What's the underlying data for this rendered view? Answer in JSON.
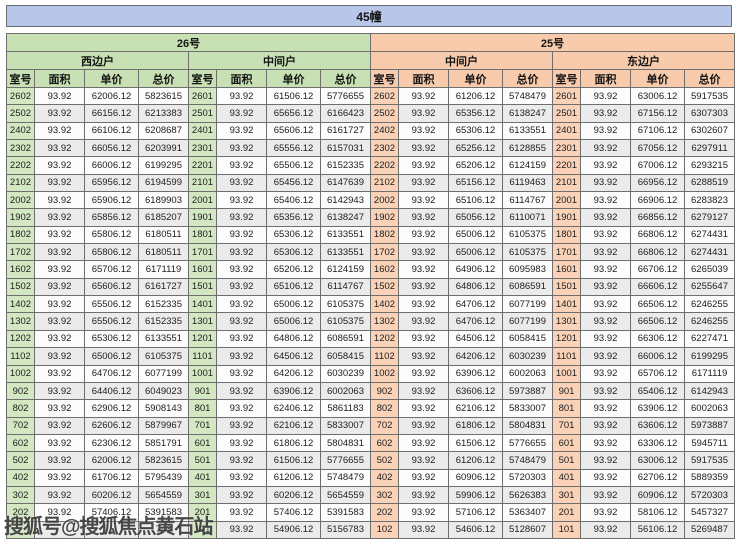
{
  "title": "45幢",
  "sections": [
    {
      "label": "26号"
    },
    {
      "label": "25号"
    }
  ],
  "units": [
    "西边户",
    "中间户",
    "中间户",
    "东边户"
  ],
  "columns": [
    "室号",
    "面积",
    "单价",
    "总价"
  ],
  "colors": {
    "title_bar": "#b8c6e9",
    "section_26": "#c7e1b4",
    "section_25": "#f8cbad",
    "room_cell_26": "#d3e8c2",
    "room_cell_25": "#f9d2b7",
    "stripe_light": "#fcfcfc",
    "stripe_dark": "#ebebeb",
    "border": "#6e6e6e"
  },
  "rows": [
    [
      "2602",
      "93.92",
      "62006.12",
      "5823615",
      "2601",
      "93.92",
      "61506.12",
      "5776655",
      "2602",
      "93.92",
      "61206.12",
      "5748479",
      "2601",
      "93.92",
      "63006.12",
      "5917535"
    ],
    [
      "2502",
      "93.92",
      "66156.12",
      "6213383",
      "2501",
      "93.92",
      "65656.12",
      "6166423",
      "2502",
      "93.92",
      "65356.12",
      "6138247",
      "2501",
      "93.92",
      "67156.12",
      "6307303"
    ],
    [
      "2402",
      "93.92",
      "66106.12",
      "6208687",
      "2401",
      "93.92",
      "65606.12",
      "6161727",
      "2402",
      "93.92",
      "65306.12",
      "6133551",
      "2401",
      "93.92",
      "67106.12",
      "6302607"
    ],
    [
      "2302",
      "93.92",
      "66056.12",
      "6203991",
      "2301",
      "93.92",
      "65556.12",
      "6157031",
      "2302",
      "93.92",
      "65256.12",
      "6128855",
      "2301",
      "93.92",
      "67056.12",
      "6297911"
    ],
    [
      "2202",
      "93.92",
      "66006.12",
      "6199295",
      "2201",
      "93.92",
      "65506.12",
      "6152335",
      "2202",
      "93.92",
      "65206.12",
      "6124159",
      "2201",
      "93.92",
      "67006.12",
      "6293215"
    ],
    [
      "2102",
      "93.92",
      "65956.12",
      "6194599",
      "2101",
      "93.92",
      "65456.12",
      "6147639",
      "2102",
      "93.92",
      "65156.12",
      "6119463",
      "2101",
      "93.92",
      "66956.12",
      "6288519"
    ],
    [
      "2002",
      "93.92",
      "65906.12",
      "6189903",
      "2001",
      "93.92",
      "65406.12",
      "6142943",
      "2002",
      "93.92",
      "65106.12",
      "6114767",
      "2001",
      "93.92",
      "66906.12",
      "6283823"
    ],
    [
      "1902",
      "93.92",
      "65856.12",
      "6185207",
      "1901",
      "93.92",
      "65356.12",
      "6138247",
      "1902",
      "93.92",
      "65056.12",
      "6110071",
      "1901",
      "93.92",
      "66856.12",
      "6279127"
    ],
    [
      "1802",
      "93.92",
      "65806.12",
      "6180511",
      "1801",
      "93.92",
      "65306.12",
      "6133551",
      "1802",
      "93.92",
      "65006.12",
      "6105375",
      "1801",
      "93.92",
      "66806.12",
      "6274431"
    ],
    [
      "1702",
      "93.92",
      "65806.12",
      "6180511",
      "1701",
      "93.92",
      "65306.12",
      "6133551",
      "1702",
      "93.92",
      "65006.12",
      "6105375",
      "1701",
      "93.92",
      "66806.12",
      "6274431"
    ],
    [
      "1602",
      "93.92",
      "65706.12",
      "6171119",
      "1601",
      "93.92",
      "65206.12",
      "6124159",
      "1602",
      "93.92",
      "64906.12",
      "6095983",
      "1601",
      "93.92",
      "66706.12",
      "6265039"
    ],
    [
      "1502",
      "93.92",
      "65606.12",
      "6161727",
      "1501",
      "93.92",
      "65106.12",
      "6114767",
      "1502",
      "93.92",
      "64806.12",
      "6086591",
      "1501",
      "93.92",
      "66606.12",
      "6255647"
    ],
    [
      "1402",
      "93.92",
      "65506.12",
      "6152335",
      "1401",
      "93.92",
      "65006.12",
      "6105375",
      "1402",
      "93.92",
      "64706.12",
      "6077199",
      "1401",
      "93.92",
      "66506.12",
      "6246255"
    ],
    [
      "1302",
      "93.92",
      "65506.12",
      "6152335",
      "1301",
      "93.92",
      "65006.12",
      "6105375",
      "1302",
      "93.92",
      "64706.12",
      "6077199",
      "1301",
      "93.92",
      "66506.12",
      "6246255"
    ],
    [
      "1202",
      "93.92",
      "65306.12",
      "6133551",
      "1201",
      "93.92",
      "64806.12",
      "6086591",
      "1202",
      "93.92",
      "64506.12",
      "6058415",
      "1201",
      "93.92",
      "66306.12",
      "6227471"
    ],
    [
      "1102",
      "93.92",
      "65006.12",
      "6105375",
      "1101",
      "93.92",
      "64506.12",
      "6058415",
      "1102",
      "93.92",
      "64206.12",
      "6030239",
      "1101",
      "93.92",
      "66006.12",
      "6199295"
    ],
    [
      "1002",
      "93.92",
      "64706.12",
      "6077199",
      "1001",
      "93.92",
      "64206.12",
      "6030239",
      "1002",
      "93.92",
      "63906.12",
      "6002063",
      "1001",
      "93.92",
      "65706.12",
      "6171119"
    ],
    [
      "902",
      "93.92",
      "64406.12",
      "6049023",
      "901",
      "93.92",
      "63906.12",
      "6002063",
      "902",
      "93.92",
      "63606.12",
      "5973887",
      "901",
      "93.92",
      "65406.12",
      "6142943"
    ],
    [
      "802",
      "93.92",
      "62906.12",
      "5908143",
      "801",
      "93.92",
      "62406.12",
      "5861183",
      "802",
      "93.92",
      "62106.12",
      "5833007",
      "801",
      "93.92",
      "63906.12",
      "6002063"
    ],
    [
      "702",
      "93.92",
      "62606.12",
      "5879967",
      "701",
      "93.92",
      "62106.12",
      "5833007",
      "702",
      "93.92",
      "61806.12",
      "5804831",
      "701",
      "93.92",
      "63606.12",
      "5973887"
    ],
    [
      "602",
      "93.92",
      "62306.12",
      "5851791",
      "601",
      "93.92",
      "61806.12",
      "5804831",
      "602",
      "93.92",
      "61506.12",
      "5776655",
      "601",
      "93.92",
      "63306.12",
      "5945711"
    ],
    [
      "502",
      "93.92",
      "62006.12",
      "5823615",
      "501",
      "93.92",
      "61506.12",
      "5776655",
      "502",
      "93.92",
      "61206.12",
      "5748479",
      "501",
      "93.92",
      "63006.12",
      "5917535"
    ],
    [
      "402",
      "93.92",
      "61706.12",
      "5795439",
      "401",
      "93.92",
      "61206.12",
      "5748479",
      "402",
      "93.92",
      "60906.12",
      "5720303",
      "401",
      "93.92",
      "62706.12",
      "5889359"
    ],
    [
      "302",
      "93.92",
      "60206.12",
      "5654559",
      "301",
      "93.92",
      "60206.12",
      "5654559",
      "302",
      "93.92",
      "59906.12",
      "5626383",
      "301",
      "93.92",
      "60906.12",
      "5720303"
    ],
    [
      "202",
      "93.92",
      "57406.12",
      "5391583",
      "201",
      "93.92",
      "57406.12",
      "5391583",
      "202",
      "93.92",
      "57106.12",
      "5363407",
      "201",
      "93.92",
      "58106.12",
      "5457327"
    ],
    [
      "",
      "",
      "",
      "743",
      "101",
      "93.92",
      "54906.12",
      "5156783",
      "102",
      "93.92",
      "54606.12",
      "5128607",
      "101",
      "93.92",
      "56106.12",
      "5269487"
    ]
  ],
  "watermark": {
    "text": "搜狐号@搜狐焦点黄石站",
    "covers_row": 25,
    "visible_fragment_col": 3
  }
}
